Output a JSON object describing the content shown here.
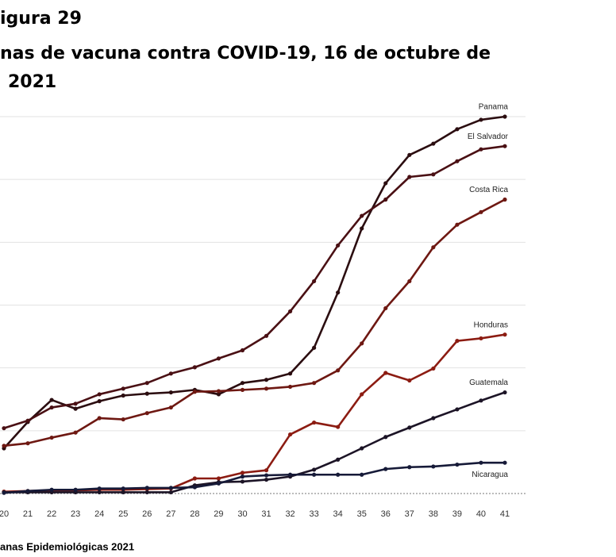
{
  "chart_data": {
    "type": "line",
    "figure_label": "igura 29",
    "title_lines": [
      "nas de vacuna contra COVID-19, 16 de octubre de",
      "2021"
    ],
    "x_label": "anas Epidemiológicas 2021",
    "x": [
      20,
      21,
      22,
      23,
      24,
      25,
      26,
      27,
      28,
      29,
      30,
      31,
      32,
      33,
      34,
      35,
      36,
      37,
      38,
      39,
      40,
      41
    ],
    "xlim": [
      20,
      41
    ],
    "xticks": [
      20,
      21,
      22,
      23,
      24,
      25,
      26,
      27,
      28,
      29,
      30,
      31,
      32,
      33,
      34,
      35,
      36,
      37,
      38,
      39,
      40,
      41
    ],
    "ylim": [
      0,
      6
    ],
    "yticks": [
      0,
      1,
      2,
      3,
      4,
      5,
      6
    ],
    "grid": true,
    "series": [
      {
        "name": "Panama",
        "color": "#2b0d10",
        "values": [
          0.72,
          1.14,
          1.49,
          1.35,
          1.47,
          1.56,
          1.59,
          1.61,
          1.65,
          1.58,
          1.76,
          1.81,
          1.91,
          2.32,
          3.2,
          4.22,
          4.94,
          5.39,
          5.57,
          5.8,
          5.95,
          6.0
        ]
      },
      {
        "name": "El Salvador",
        "color": "#4a1014",
        "values": [
          1.04,
          1.16,
          1.37,
          1.43,
          1.58,
          1.67,
          1.76,
          1.91,
          2.01,
          2.15,
          2.28,
          2.51,
          2.9,
          3.38,
          3.95,
          4.42,
          4.68,
          5.04,
          5.08,
          5.29,
          5.48,
          5.53
        ]
      },
      {
        "name": "Costa Rica",
        "color": "#6e1812",
        "values": [
          0.76,
          0.8,
          0.89,
          0.97,
          1.2,
          1.18,
          1.28,
          1.37,
          1.62,
          1.63,
          1.65,
          1.67,
          1.7,
          1.76,
          1.96,
          2.39,
          2.95,
          3.38,
          3.92,
          4.28,
          4.48,
          4.68
        ]
      },
      {
        "name": "Honduras",
        "color": "#8c1c12",
        "values": [
          0.03,
          0.04,
          0.05,
          0.05,
          0.06,
          0.06,
          0.07,
          0.08,
          0.24,
          0.24,
          0.33,
          0.37,
          0.94,
          1.13,
          1.06,
          1.58,
          1.92,
          1.8,
          1.99,
          2.43,
          2.47,
          2.53
        ]
      },
      {
        "name": "Guatemala",
        "color": "#1c1426",
        "values": [
          0.02,
          0.02,
          0.02,
          0.02,
          0.02,
          0.02,
          0.02,
          0.02,
          0.13,
          0.18,
          0.19,
          0.22,
          0.27,
          0.38,
          0.54,
          0.72,
          0.9,
          1.05,
          1.2,
          1.34,
          1.48,
          1.61
        ]
      },
      {
        "name": "Nicaragua",
        "color": "#161a38",
        "values": [
          0.01,
          0.04,
          0.06,
          0.06,
          0.08,
          0.08,
          0.09,
          0.09,
          0.1,
          0.16,
          0.27,
          0.29,
          0.3,
          0.3,
          0.3,
          0.3,
          0.39,
          0.42,
          0.43,
          0.46,
          0.49,
          0.49
        ]
      }
    ]
  }
}
